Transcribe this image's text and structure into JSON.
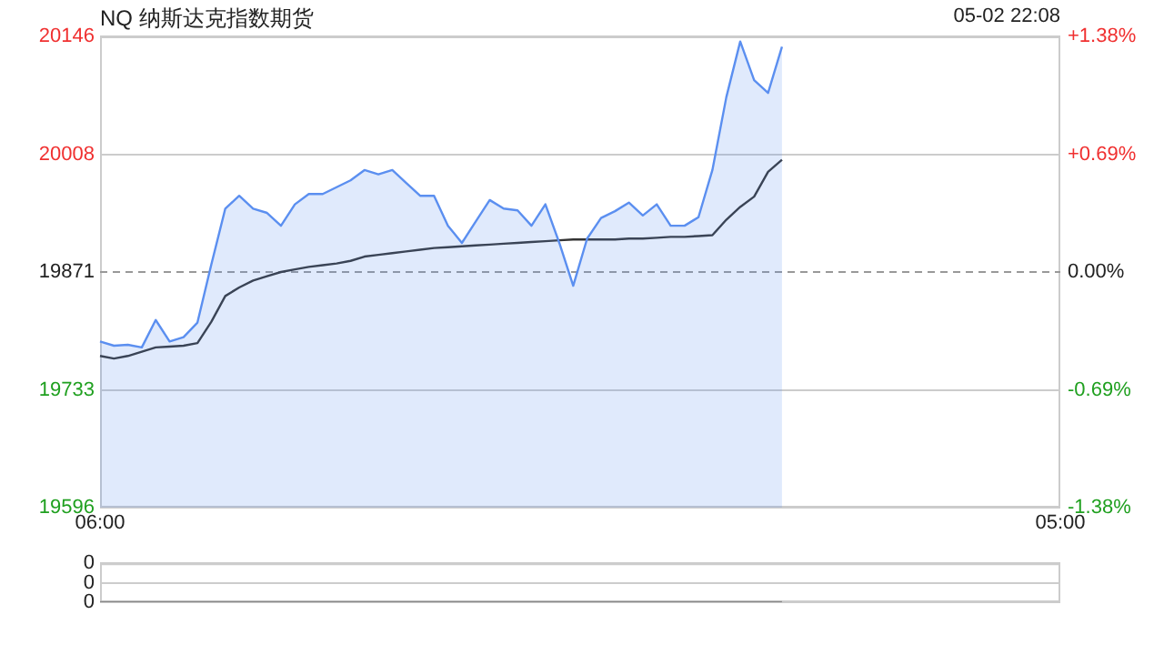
{
  "chart_data": [
    {
      "type": "area",
      "title": "NQ 纳斯达克指数期货",
      "annotations": [
        "05-02 22:08"
      ],
      "categories": [
        "06:00",
        null,
        null,
        null,
        null,
        null,
        null,
        null,
        null,
        null,
        null,
        null,
        null,
        null,
        null,
        null,
        null,
        null,
        null,
        null,
        null,
        null,
        null,
        null,
        null,
        null,
        null,
        null,
        null,
        null,
        null,
        null,
        null,
        null,
        null,
        null,
        null,
        null,
        null,
        null,
        null,
        null,
        null,
        null,
        null,
        null,
        null,
        null,
        null,
        null,
        null,
        null,
        null,
        null,
        null,
        null,
        null,
        null,
        null,
        null,
        null,
        null,
        null,
        null,
        null,
        null,
        null,
        null,
        null,
        "05:00"
      ],
      "ylim": [
        19596,
        20146
      ],
      "yticks": [
        19596,
        19733,
        19871,
        20008,
        20146
      ],
      "y2lim": [
        -1.38,
        1.38
      ],
      "y2ticks": [
        {
          "value": -1.38,
          "label": "-1.38%"
        },
        {
          "value": -0.69,
          "label": "-0.69%"
        },
        {
          "value": 0,
          "label": "0.00%"
        },
        {
          "value": 0.69,
          "label": "+0.69%"
        },
        {
          "value": 1.38,
          "label": "+1.38%"
        }
      ],
      "grid": "y",
      "ref_lines": [
        {
          "axis": "y",
          "value": 19871,
          "color": "#999999",
          "line_style": "dashed"
        }
      ],
      "series": [
        {
          "color": "#5b8ff0",
          "values": [
            19790,
            19785,
            19786,
            19783,
            19815,
            19790,
            19795,
            19812,
            19880,
            19945,
            19960,
            19945,
            19940,
            19925,
            19950,
            19962,
            19962,
            19970,
            19978,
            19990,
            19985,
            19990,
            19975,
            19960,
            19960,
            19925,
            19905,
            19930,
            19955,
            19945,
            19943,
            19925,
            19950,
            19905,
            19855,
            19910,
            19934,
            19942,
            19952,
            19937,
            19950,
            19925,
            19925,
            19935,
            19990,
            20075,
            20140,
            20095,
            20080,
            20134,
            null,
            null,
            null,
            null,
            null,
            null,
            null,
            null,
            null,
            null,
            null,
            null,
            null,
            null,
            null,
            null,
            null,
            null,
            null,
            null
          ]
        },
        {
          "type": "line",
          "color": "#333333",
          "values": [
            19773,
            19770,
            19773,
            19778,
            19783,
            19784,
            19785,
            19788,
            19813,
            19843,
            19853,
            19861,
            19866,
            19871,
            19874,
            19877,
            19879,
            19881,
            19884,
            19889,
            19891,
            19893,
            19895,
            19897,
            19899,
            19900,
            19901,
            19902,
            19903,
            19904,
            19905,
            19906,
            19907,
            19908,
            19909,
            19909,
            19909,
            19909,
            19910,
            19910,
            19911,
            19912,
            19912,
            19913,
            19914,
            19932,
            19947,
            19959,
            19988,
            20002,
            null,
            null,
            null,
            null,
            null,
            null,
            null,
            null,
            null,
            null,
            null,
            null,
            null,
            null,
            null,
            null,
            null,
            null,
            null,
            null
          ]
        }
      ]
    },
    {
      "type": "line",
      "categories": [
        null,
        null,
        null,
        null,
        null,
        null,
        null,
        null,
        null,
        null,
        null,
        null,
        null,
        null,
        null,
        null,
        null,
        null,
        null,
        null,
        null,
        null,
        null,
        null,
        null,
        null,
        null,
        null,
        null,
        null,
        null,
        null,
        null,
        null,
        null,
        null,
        null,
        null,
        null,
        null,
        null,
        null,
        null,
        null,
        null,
        null,
        null,
        null,
        null,
        null,
        null,
        null,
        null,
        null,
        null,
        null,
        null,
        null,
        null,
        null,
        null,
        null,
        null,
        null,
        null,
        null,
        null,
        null,
        null,
        null
      ],
      "ylim": [
        0,
        0.4
      ],
      "yticks": [
        {
          "value": 0,
          "label": "0"
        },
        {
          "value": 0.2,
          "label": "0"
        },
        {
          "value": 0.4,
          "label": "0"
        }
      ],
      "grid": "y",
      "tick_labels": "y",
      "series": [
        {
          "color": "#888888",
          "values": [
            0,
            0,
            0,
            0,
            0,
            0,
            0,
            0,
            0,
            0,
            0,
            0,
            0,
            0,
            0,
            0,
            0,
            0,
            0,
            0,
            0,
            0,
            0,
            0,
            0,
            0,
            0,
            0,
            0,
            0,
            0,
            0,
            0,
            0,
            0,
            0,
            0,
            0,
            0,
            0,
            0,
            0,
            0,
            0,
            0,
            0,
            0,
            0,
            0,
            0,
            null,
            null,
            null,
            null,
            null,
            null,
            null,
            null,
            null,
            null,
            null,
            null,
            null,
            null,
            null,
            null,
            null,
            null,
            null,
            null
          ]
        }
      ]
    }
  ]
}
